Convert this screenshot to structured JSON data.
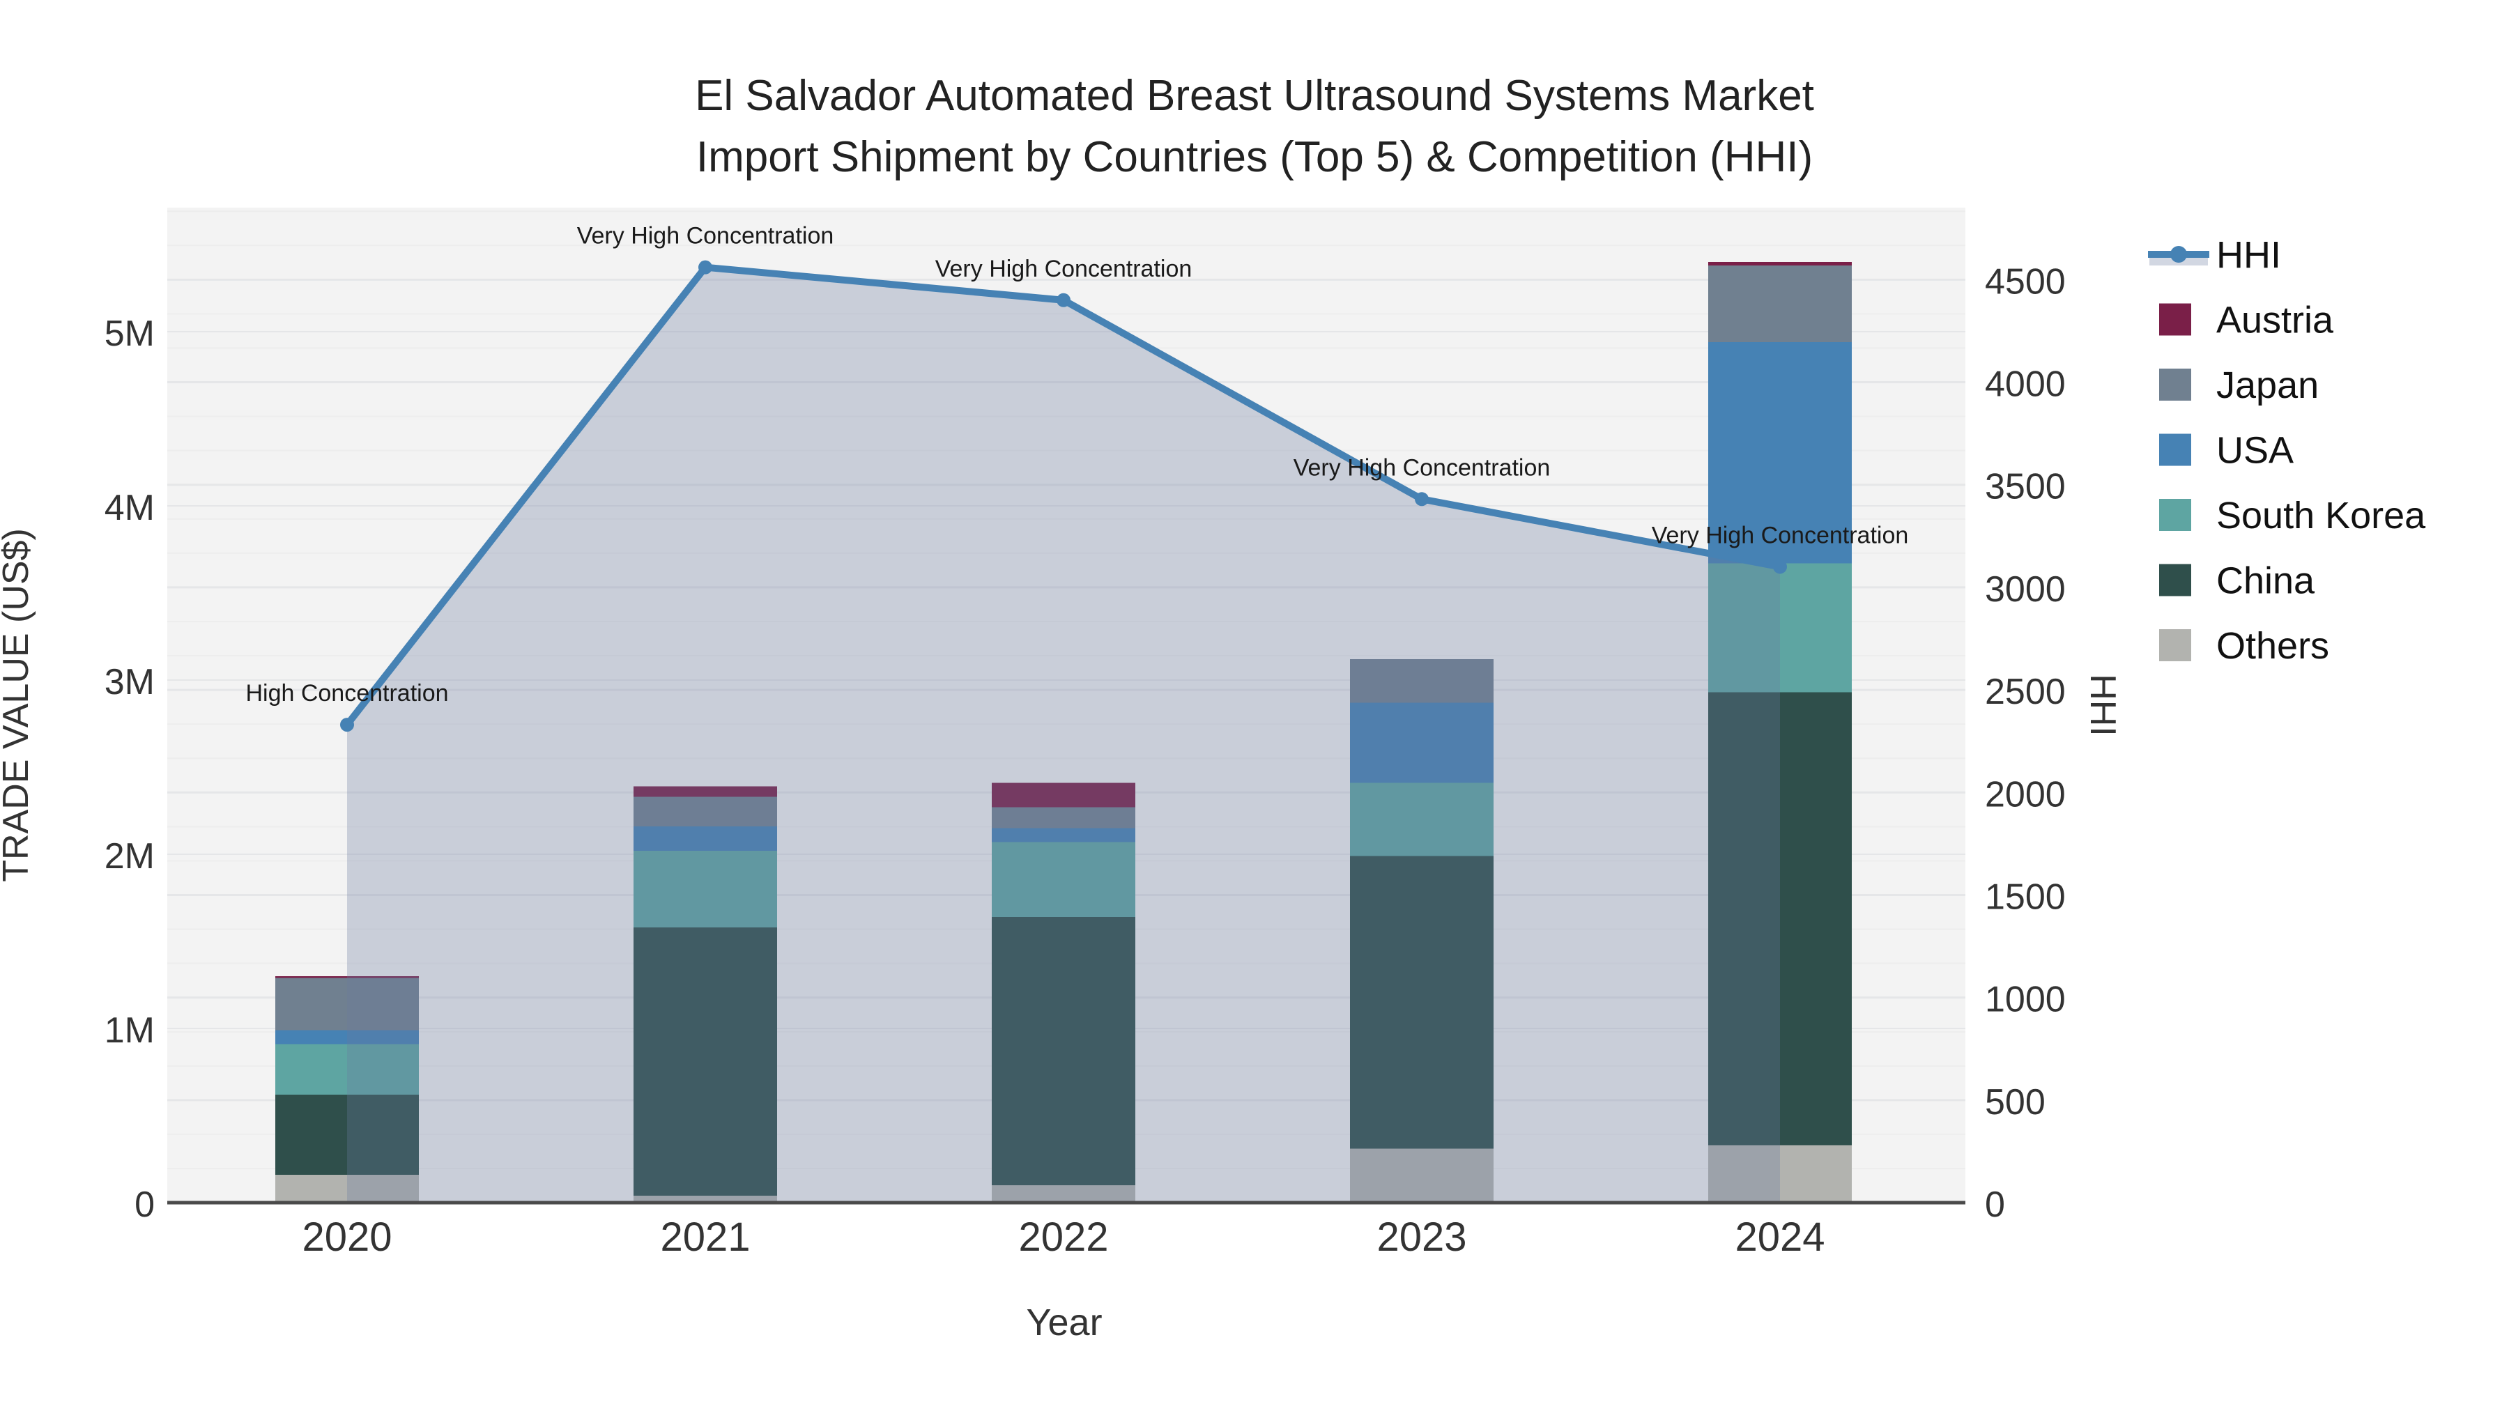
{
  "title": {
    "line1": "El Salvador Automated Breast Ultrasound Systems Market",
    "line2": "Import Shipment by Countries (Top 5) & Competition (HHI)"
  },
  "axes": {
    "left": {
      "title": "TRADE VALUE (US$)",
      "tick_labels": [
        "0",
        "1M",
        "2M",
        "3M",
        "4M",
        "5M"
      ],
      "tick_values": [
        0,
        1000000,
        2000000,
        3000000,
        4000000,
        5000000
      ],
      "range": [
        0,
        5712000
      ]
    },
    "right": {
      "title": "HHI",
      "tick_labels": [
        "0",
        "500",
        "1000",
        "1500",
        "2000",
        "2500",
        "3000",
        "3500",
        "4000",
        "4500"
      ],
      "tick_values": [
        0,
        500,
        1000,
        1500,
        2000,
        2500,
        3000,
        3500,
        4000,
        4500
      ],
      "range": [
        0,
        4851
      ]
    },
    "x": {
      "title": "Year"
    }
  },
  "legend": {
    "items": [
      {
        "label": "HHI",
        "type": "line",
        "color": "#4682b4"
      },
      {
        "label": "Austria",
        "type": "square",
        "color": "#7a1f48"
      },
      {
        "label": "Japan",
        "type": "square",
        "color": "#708090"
      },
      {
        "label": "USA",
        "type": "square",
        "color": "#4682b4"
      },
      {
        "label": "South Korea",
        "type": "square",
        "color": "#5ea5a2"
      },
      {
        "label": "China",
        "type": "square",
        "color": "#2f4f4b"
      },
      {
        "label": "Others",
        "type": "square",
        "color": "#b2b3af"
      }
    ]
  },
  "chart_data": {
    "type": "combo-stacked-bar-line",
    "categories": [
      "2020",
      "2021",
      "2022",
      "2023",
      "2024"
    ],
    "bar_unit": "US$",
    "bar_series": [
      {
        "name": "Others",
        "color": "#b2b3af",
        "values": [
          160000,
          40000,
          100000,
          310000,
          330000
        ]
      },
      {
        "name": "China",
        "color": "#2f4f4b",
        "values": [
          460000,
          1540000,
          1540000,
          1680000,
          2600000
        ]
      },
      {
        "name": "South Korea",
        "color": "#5ea5a2",
        "values": [
          290000,
          440000,
          430000,
          420000,
          740000
        ]
      },
      {
        "name": "USA",
        "color": "#4682b4",
        "values": [
          80000,
          140000,
          80000,
          460000,
          1270000
        ]
      },
      {
        "name": "Japan",
        "color": "#708090",
        "values": [
          300000,
          170000,
          120000,
          250000,
          440000
        ]
      },
      {
        "name": "Austria",
        "color": "#7a1f48",
        "values": [
          10000,
          60000,
          140000,
          0,
          20000
        ]
      }
    ],
    "line_series": {
      "name": "HHI",
      "color": "#4682b4",
      "area_fill": "rgba(105,122,160,0.30)",
      "values": [
        2330,
        4560,
        4400,
        3430,
        3100
      ]
    },
    "annotations": [
      {
        "text": "High Concentration",
        "category": "2020"
      },
      {
        "text": "Very High Concentration",
        "category": "2021"
      },
      {
        "text": "Very High Concentration",
        "category": "2022"
      },
      {
        "text": "Very High Concentration",
        "category": "2023"
      },
      {
        "text": "Very High Concentration",
        "category": "2024"
      }
    ],
    "plot_background": "#f3f3f3",
    "gridline_major_color": "#e5e6e8",
    "gridline_minor_color": "#ededed",
    "axis_line_color": "#4a4a4a",
    "text_color": "#333333",
    "title_color": "#222222",
    "annotation_color": "#1a1a1a"
  }
}
